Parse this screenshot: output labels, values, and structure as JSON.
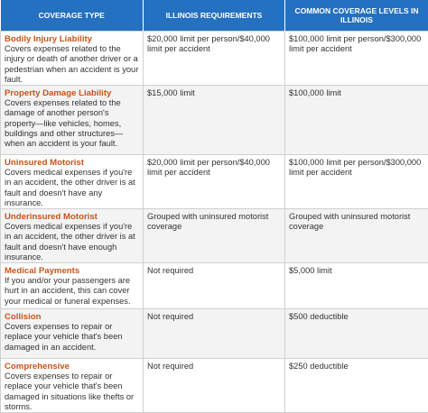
{
  "table": {
    "headers": [
      "COVERAGE TYPE",
      "ILLINOIS REQUIREMENTS",
      "COMMON COVERAGE LEVELS IN ILLINOIS"
    ],
    "rows": [
      {
        "title": "Bodily Injury Liability",
        "description": "Covers expenses related to the injury or death of another driver or a pedestrian when an accident is your fault.",
        "illinois": "$20,000 limit per person/$40,000 limit per accident",
        "common": "$100,000 limit per person/$300,000 limit per accident"
      },
      {
        "title": "Property Damage Liability",
        "description": "Covers expenses related to the damage of another person's property—like vehicles, homes, buildings and other structures—when an accident is your fault.",
        "illinois": "$15,000 limit",
        "common": "$100,000 limit"
      },
      {
        "title": "Uninsured Motorist",
        "description": "Covers medical expenses if you're in an accident, the other driver is at fault and doesn't have any insurance.",
        "illinois": "$20,000 limit per person/$40,000 limit per accident",
        "common": "$100,000 limit per person/$300,000 limit per accident"
      },
      {
        "title": "Underinsured Motorist",
        "description": "Covers medical expenses if you're in an accident, the other driver is at fault and doesn't have enough insurance.",
        "illinois": "Grouped with uninsured motorist coverage",
        "common": "Grouped with uninsured motorist coverage"
      },
      {
        "title": "Medical Payments",
        "description": "If you and/or your passengers are hurt in an accident, this can cover your medical or funeral expenses.",
        "illinois": "Not required",
        "common": "$5,000 limit"
      },
      {
        "title": "Collision",
        "description": "Covers expenses to repair or replace your vehicle that's been damaged in an accident.",
        "illinois": "Not required",
        "common": "$500 deductible"
      },
      {
        "title": "Comprehensive",
        "description": "Covers expenses to repair or replace your vehicle that's been damaged in situations like thefts or storms.",
        "illinois": "Not required",
        "common": "$250 deductible"
      }
    ]
  }
}
